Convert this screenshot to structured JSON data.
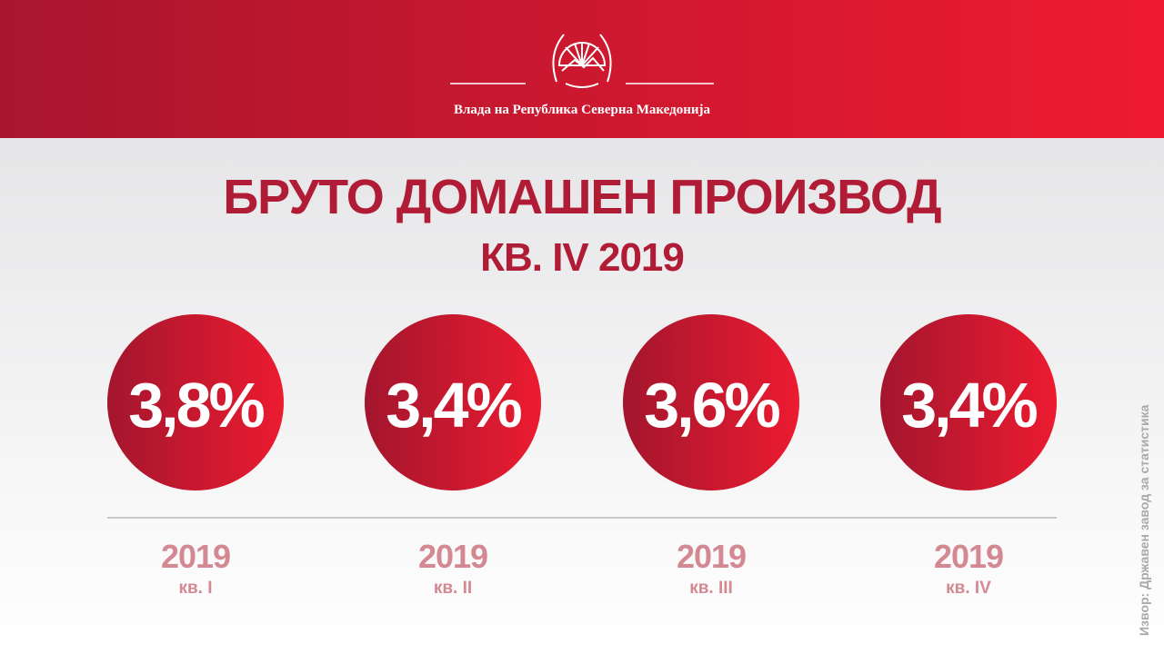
{
  "header": {
    "org": "Влада на Република Северна Македонија"
  },
  "title": "БРУТО ДОМАШЕН ПРОИЗВОД",
  "subtitle": "КВ. IV 2019",
  "items": [
    {
      "value": "3,8%",
      "year": "2019",
      "quarter": "кв. I"
    },
    {
      "value": "3,4%",
      "year": "2019",
      "quarter": "кв. II"
    },
    {
      "value": "3,6%",
      "year": "2019",
      "quarter": "кв. III"
    },
    {
      "value": "3,4%",
      "year": "2019",
      "quarter": "кв. IV"
    }
  ],
  "source": "Извор: Државен завод за статистика"
}
